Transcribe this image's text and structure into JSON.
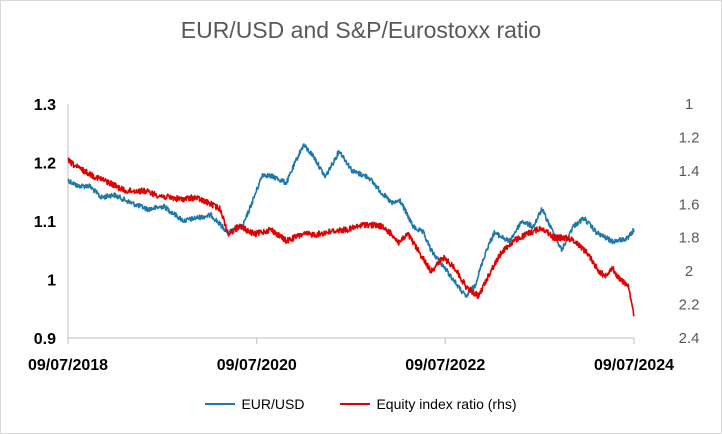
{
  "chart_data": {
    "type": "line",
    "title": "EUR/USD and S&P/Eurostoxx ratio",
    "x_tick_labels": [
      "09/07/2018",
      "09/07/2020",
      "09/07/2022",
      "09/07/2024"
    ],
    "y_left": {
      "lim": [
        0.9,
        1.3
      ],
      "ticks": [
        "0.9",
        "1",
        "1.1",
        "1.2",
        "1.3"
      ]
    },
    "y_right": {
      "lim": [
        2.4,
        1.0
      ],
      "inverted": true,
      "ticks": [
        "1",
        "1.2",
        "1.4",
        "1.6",
        "1.8",
        "2",
        "2.2",
        "2.4"
      ]
    },
    "grid": false,
    "legend_position": "bottom",
    "series": [
      {
        "name": "EUR/USD",
        "axis": "left",
        "color": "#1f78a8",
        "x": [
          "2018-07-09",
          "2018-08-15",
          "2018-09-30",
          "2018-11-15",
          "2019-01-01",
          "2019-03-15",
          "2019-05-15",
          "2019-07-15",
          "2019-09-30",
          "2019-11-15",
          "2020-01-15",
          "2020-03-20",
          "2020-05-15",
          "2020-06-15",
          "2020-08-01",
          "2020-09-15",
          "2020-11-01",
          "2020-12-15",
          "2021-01-06",
          "2021-02-15",
          "2021-03-31",
          "2021-05-25",
          "2021-07-15",
          "2021-09-15",
          "2021-11-01",
          "2021-12-15",
          "2022-01-15",
          "2022-03-07",
          "2022-04-15",
          "2022-05-15",
          "2022-07-15",
          "2022-09-27",
          "2022-11-01",
          "2022-12-15",
          "2023-01-15",
          "2023-03-15",
          "2023-05-01",
          "2023-06-15",
          "2023-07-18",
          "2023-08-15",
          "2023-10-03",
          "2023-11-15",
          "2023-12-28",
          "2024-02-15",
          "2024-04-16",
          "2024-06-15",
          "2024-07-09"
        ],
        "y": [
          1.17,
          1.16,
          1.16,
          1.14,
          1.145,
          1.13,
          1.12,
          1.125,
          1.1,
          1.105,
          1.11,
          1.08,
          1.09,
          1.125,
          1.18,
          1.175,
          1.165,
          1.21,
          1.23,
          1.21,
          1.175,
          1.22,
          1.185,
          1.175,
          1.15,
          1.13,
          1.135,
          1.09,
          1.08,
          1.05,
          1.015,
          0.97,
          0.99,
          1.05,
          1.08,
          1.065,
          1.1,
          1.09,
          1.12,
          1.095,
          1.05,
          1.09,
          1.105,
          1.08,
          1.065,
          1.07,
          1.085
        ]
      },
      {
        "name": "Equity index ratio (rhs)",
        "axis": "right",
        "color": "#e00000",
        "x": [
          "2018-07-09",
          "2018-08-15",
          "2018-10-15",
          "2018-12-15",
          "2019-02-15",
          "2019-05-01",
          "2019-07-01",
          "2019-09-15",
          "2019-11-15",
          "2020-01-15",
          "2020-02-20",
          "2020-03-20",
          "2020-05-01",
          "2020-07-01",
          "2020-09-01",
          "2020-11-01",
          "2021-01-01",
          "2021-03-01",
          "2021-05-01",
          "2021-07-01",
          "2021-09-01",
          "2021-11-01",
          "2021-12-15",
          "2022-01-10",
          "2022-02-15",
          "2022-03-15",
          "2022-05-15",
          "2022-07-01",
          "2022-08-15",
          "2022-09-30",
          "2022-11-15",
          "2023-01-01",
          "2023-02-15",
          "2023-04-01",
          "2023-06-01",
          "2023-07-20",
          "2023-09-01",
          "2023-10-27",
          "2023-12-01",
          "2024-01-15",
          "2024-02-15",
          "2024-03-15",
          "2024-04-15",
          "2024-05-15",
          "2024-06-15",
          "2024-07-09"
        ],
        "y": [
          1.34,
          1.38,
          1.43,
          1.47,
          1.52,
          1.52,
          1.55,
          1.57,
          1.56,
          1.6,
          1.63,
          1.78,
          1.73,
          1.78,
          1.75,
          1.82,
          1.78,
          1.78,
          1.76,
          1.75,
          1.72,
          1.73,
          1.78,
          1.83,
          1.78,
          1.85,
          2.0,
          1.92,
          1.98,
          2.1,
          2.15,
          2.0,
          1.88,
          1.82,
          1.77,
          1.74,
          1.8,
          1.8,
          1.83,
          1.9,
          1.98,
          2.03,
          1.98,
          2.05,
          2.08,
          2.27
        ]
      }
    ]
  },
  "legend": {
    "item1": "EUR/USD",
    "item2": "Equity index ratio (rhs)"
  }
}
